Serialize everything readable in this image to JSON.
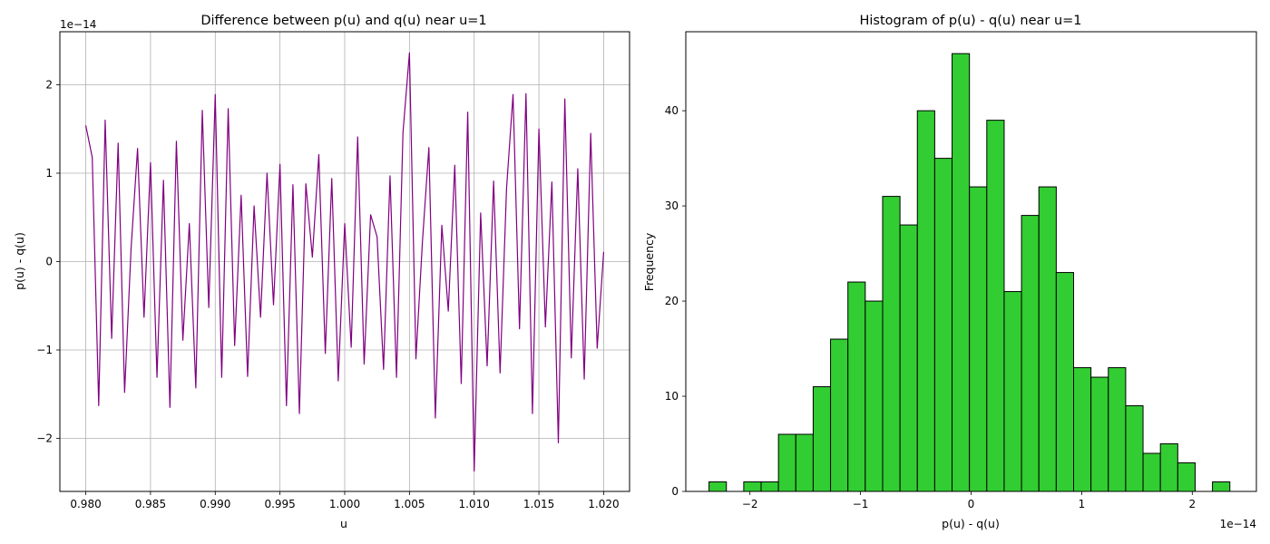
{
  "chart_data": [
    {
      "type": "line",
      "title": "Difference between p(u) and q(u) near u=1",
      "xlabel": "u",
      "ylabel": "p(u) - q(u)",
      "y_offset_text": "1e−14",
      "xlim": [
        0.978,
        1.022
      ],
      "ylim": [
        -2.6,
        2.6
      ],
      "y_scale_exponent": -14,
      "x_ticks": [
        0.98,
        0.985,
        0.99,
        0.995,
        1.0,
        1.005,
        1.01,
        1.015,
        1.02
      ],
      "x_tick_labels": [
        "0.980",
        "0.985",
        "0.990",
        "0.995",
        "1.000",
        "1.005",
        "1.010",
        "1.015",
        "1.020"
      ],
      "y_ticks": [
        -2,
        -1,
        0,
        1,
        2
      ],
      "y_tick_labels": [
        "−2",
        "−1",
        "0",
        "1",
        "2"
      ],
      "grid": true,
      "line_color": "#800080",
      "series": [
        {
          "x": [
            0.98,
            0.9805,
            0.981,
            0.9815,
            0.982,
            0.9825,
            0.983,
            0.9835,
            0.984,
            0.9845,
            0.985,
            0.9855,
            0.986,
            0.9865,
            0.987,
            0.9875,
            0.988,
            0.9885,
            0.989,
            0.9895,
            0.99,
            0.9905,
            0.991,
            0.9915,
            0.992,
            0.9925,
            0.993,
            0.9935,
            0.994,
            0.9945,
            0.995,
            0.9955,
            0.996,
            0.9965,
            0.997,
            0.9975,
            0.998,
            0.9985,
            0.999,
            0.9995,
            1.0,
            1.0005,
            1.001,
            1.0015,
            1.002,
            1.0025,
            1.003,
            1.0035,
            1.004,
            1.0045,
            1.005,
            1.0055,
            1.006,
            1.0065,
            1.007,
            1.0075,
            1.008,
            1.0085,
            1.009,
            1.0095,
            1.01,
            1.0105,
            1.011,
            1.0115,
            1.012,
            1.0125,
            1.013,
            1.0135,
            1.014,
            1.0145,
            1.015,
            1.0155,
            1.016,
            1.0165,
            1.017,
            1.0175,
            1.018,
            1.0185,
            1.019,
            1.0195,
            1.02
          ],
          "values": [
            1.54,
            1.18,
            -1.63,
            1.6,
            -0.87,
            1.34,
            -1.48,
            0.15,
            1.28,
            -0.63,
            1.12,
            -1.31,
            0.92,
            -1.65,
            1.36,
            -0.89,
            0.43,
            -1.43,
            1.71,
            -0.52,
            1.89,
            -1.31,
            1.73,
            -0.95,
            0.75,
            -1.3,
            0.63,
            -0.63,
            1.0,
            -0.49,
            1.1,
            -1.63,
            0.87,
            -1.72,
            0.88,
            0.05,
            1.21,
            -1.04,
            0.94,
            -1.35,
            0.43,
            -0.97,
            1.41,
            -1.16,
            0.53,
            0.28,
            -1.22,
            0.97,
            -1.31,
            1.46,
            2.36,
            -1.1,
            0.22,
            1.29,
            -1.77,
            0.41,
            -0.56,
            1.09,
            -1.38,
            1.69,
            -2.37,
            0.55,
            -1.18,
            0.91,
            -1.26,
            0.83,
            1.89,
            -0.76,
            1.9,
            -1.72,
            1.5,
            -0.74,
            0.9,
            -2.05,
            1.84,
            -1.09,
            1.05,
            -1.33,
            1.45,
            -0.98,
            0.11
          ]
        }
      ]
    },
    {
      "type": "bar",
      "title": "Histogram of p(u) - q(u) near u=1",
      "xlabel": "p(u) - q(u)",
      "ylabel": "Frequency",
      "x_offset_text": "1e−14",
      "xlim": [
        -2.58,
        2.58
      ],
      "ylim": [
        0,
        48.3
      ],
      "x_scale_exponent": -14,
      "x_ticks": [
        -2,
        -1,
        0,
        1,
        2
      ],
      "x_tick_labels": [
        "−2",
        "−1",
        "0",
        "1",
        "2"
      ],
      "y_ticks": [
        0,
        10,
        20,
        30,
        40
      ],
      "y_tick_labels": [
        "0",
        "10",
        "20",
        "30",
        "40"
      ],
      "grid": false,
      "bar_color": "#32cd32",
      "edge_color": "#000000",
      "bin_edges": [
        -2.37,
        -2.213,
        -2.056,
        -1.899,
        -1.742,
        -1.585,
        -1.428,
        -1.271,
        -1.114,
        -0.957,
        -0.8,
        -0.643,
        -0.486,
        -0.329,
        -0.172,
        -0.015,
        0.142,
        0.299,
        0.456,
        0.613,
        0.77,
        0.927,
        1.084,
        1.241,
        1.398,
        1.555,
        1.712,
        1.869,
        2.026,
        2.183,
        2.34
      ],
      "values": [
        1,
        0,
        1,
        1,
        6,
        6,
        11,
        16,
        22,
        20,
        31,
        28,
        40,
        35,
        46,
        32,
        39,
        21,
        29,
        32,
        23,
        13,
        12,
        13,
        9,
        4,
        5,
        3,
        0,
        1
      ]
    }
  ]
}
